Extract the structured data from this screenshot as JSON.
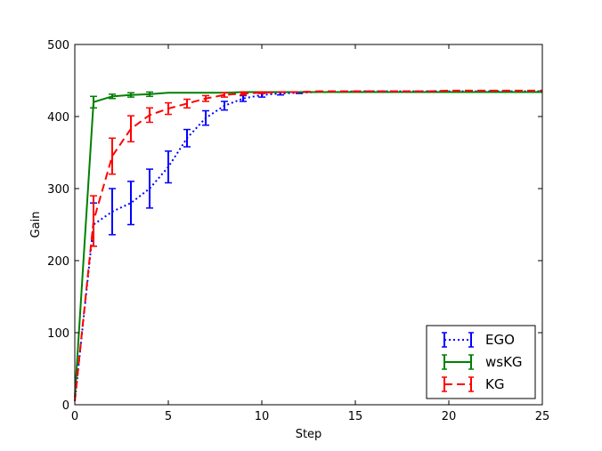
{
  "chart_data": {
    "type": "line",
    "title": "",
    "xlabel": "Step",
    "ylabel": "Gain",
    "xlim": [
      0,
      25
    ],
    "ylim": [
      0,
      500
    ],
    "xticks": [
      0,
      5,
      10,
      15,
      20,
      25
    ],
    "yticks": [
      0,
      100,
      200,
      300,
      400,
      500
    ],
    "grid": false,
    "legend_position": "bottom-right",
    "series": [
      {
        "name": "EGO",
        "color": "#0000ff",
        "linestyle": "dotted",
        "x": [
          0,
          1,
          2,
          3,
          4,
          5,
          6,
          7,
          8,
          9,
          10,
          11,
          12,
          13,
          14,
          15,
          16,
          17,
          18,
          19,
          20,
          21,
          22,
          23,
          24,
          25
        ],
        "y": [
          5,
          250,
          268,
          280,
          300,
          330,
          370,
          398,
          415,
          425,
          430,
          432,
          433,
          434,
          434,
          435,
          435,
          435,
          435,
          435,
          435,
          435,
          435,
          435,
          435,
          435
        ],
        "err": [
          0,
          30,
          32,
          30,
          27,
          22,
          12,
          10,
          6,
          4,
          3,
          2,
          1,
          0,
          0,
          0,
          0,
          0,
          0,
          0,
          0,
          0,
          0,
          0,
          0,
          0
        ]
      },
      {
        "name": "wsKG",
        "color": "#008000",
        "linestyle": "solid",
        "x": [
          0,
          1,
          2,
          3,
          4,
          5,
          6,
          7,
          8,
          9,
          10,
          11,
          12,
          13,
          14,
          15,
          16,
          17,
          18,
          19,
          20,
          21,
          22,
          23,
          24,
          25
        ],
        "y": [
          10,
          420,
          428,
          430,
          431,
          433,
          433,
          433,
          433,
          434,
          434,
          434,
          434,
          434,
          434,
          434,
          434,
          434,
          434,
          434,
          434,
          434,
          434,
          434,
          434,
          434
        ],
        "err": [
          0,
          8,
          3,
          3,
          3,
          0,
          0,
          0,
          0,
          0,
          0,
          0,
          0,
          0,
          0,
          0,
          0,
          0,
          0,
          0,
          0,
          0,
          0,
          0,
          0,
          0
        ]
      },
      {
        "name": "KG",
        "color": "#ff0000",
        "linestyle": "dashed",
        "x": [
          0,
          1,
          2,
          3,
          4,
          5,
          6,
          7,
          8,
          9,
          10,
          11,
          12,
          13,
          14,
          15,
          16,
          17,
          18,
          19,
          20,
          21,
          22,
          23,
          24,
          25
        ],
        "y": [
          5,
          255,
          345,
          383,
          402,
          411,
          418,
          425,
          430,
          432,
          433,
          434,
          434,
          435,
          435,
          435,
          435,
          435,
          435,
          435,
          436,
          436,
          436,
          436,
          436,
          436
        ],
        "err": [
          0,
          35,
          25,
          18,
          10,
          8,
          6,
          4,
          3,
          2,
          1,
          0,
          0,
          0,
          0,
          0,
          0,
          0,
          0,
          0,
          0,
          0,
          0,
          0,
          0,
          0
        ]
      }
    ]
  }
}
